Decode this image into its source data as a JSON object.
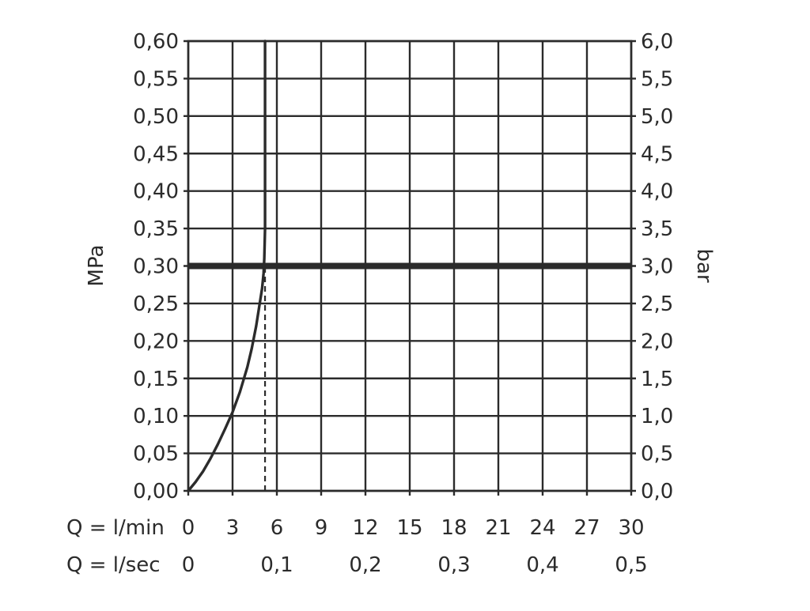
{
  "chart_data": {
    "type": "line",
    "title": "",
    "ylabel_left": "MPa",
    "ylabel_right": "bar",
    "ylim_left": [
      0,
      0.6
    ],
    "ylim_right": [
      0,
      6.0
    ],
    "xlim": [
      0,
      30
    ],
    "grid": true,
    "y_left_ticks": [
      "0,00",
      "0,05",
      "0,10",
      "0,15",
      "0,20",
      "0,25",
      "0,30",
      "0,35",
      "0,40",
      "0,45",
      "0,50",
      "0,55",
      "0,60"
    ],
    "y_right_ticks": [
      "0,0",
      "0,5",
      "1,0",
      "1,5",
      "2,0",
      "2,5",
      "3,0",
      "3,5",
      "4,0",
      "4,5",
      "5,0",
      "5,5",
      "6,0"
    ],
    "x_axes": [
      {
        "label": "Q = l/min",
        "ticks": [
          {
            "value": 0,
            "label": "0"
          },
          {
            "value": 3,
            "label": "3"
          },
          {
            "value": 6,
            "label": "6"
          },
          {
            "value": 9,
            "label": "9"
          },
          {
            "value": 12,
            "label": "12"
          },
          {
            "value": 15,
            "label": "15"
          },
          {
            "value": 18,
            "label": "18"
          },
          {
            "value": 21,
            "label": "21"
          },
          {
            "value": 24,
            "label": "24"
          },
          {
            "value": 27,
            "label": "27"
          },
          {
            "value": 30,
            "label": "30"
          }
        ]
      },
      {
        "label": "Q = l/sec",
        "ticks": [
          {
            "value": 0,
            "label": "0"
          },
          {
            "value": 6,
            "label": "0,1"
          },
          {
            "value": 12,
            "label": "0,2"
          },
          {
            "value": 18,
            "label": "0,3"
          },
          {
            "value": 24,
            "label": "0,4"
          },
          {
            "value": 30,
            "label": "0,5"
          }
        ]
      }
    ],
    "series": [
      {
        "x": [
          0,
          0.5,
          1.0,
          1.5,
          2.0,
          2.5,
          3.0,
          3.5,
          4.0,
          4.3,
          4.6,
          4.8,
          5.0,
          5.1,
          5.15,
          5.2,
          5.2
        ],
        "y": [
          0,
          0.012,
          0.026,
          0.043,
          0.062,
          0.083,
          0.105,
          0.132,
          0.165,
          0.19,
          0.22,
          0.245,
          0.27,
          0.29,
          0.31,
          0.35,
          0.6
        ],
        "color": "#2b2b2b"
      }
    ],
    "reference_lines": [
      {
        "orientation": "horizontal",
        "y": 0.3,
        "style": "thick",
        "color": "#2b2b2b"
      },
      {
        "orientation": "vertical",
        "x": 5.2,
        "y_from": 0,
        "y_to": 0.3,
        "style": "dashed",
        "color": "#2b2b2b"
      }
    ]
  }
}
